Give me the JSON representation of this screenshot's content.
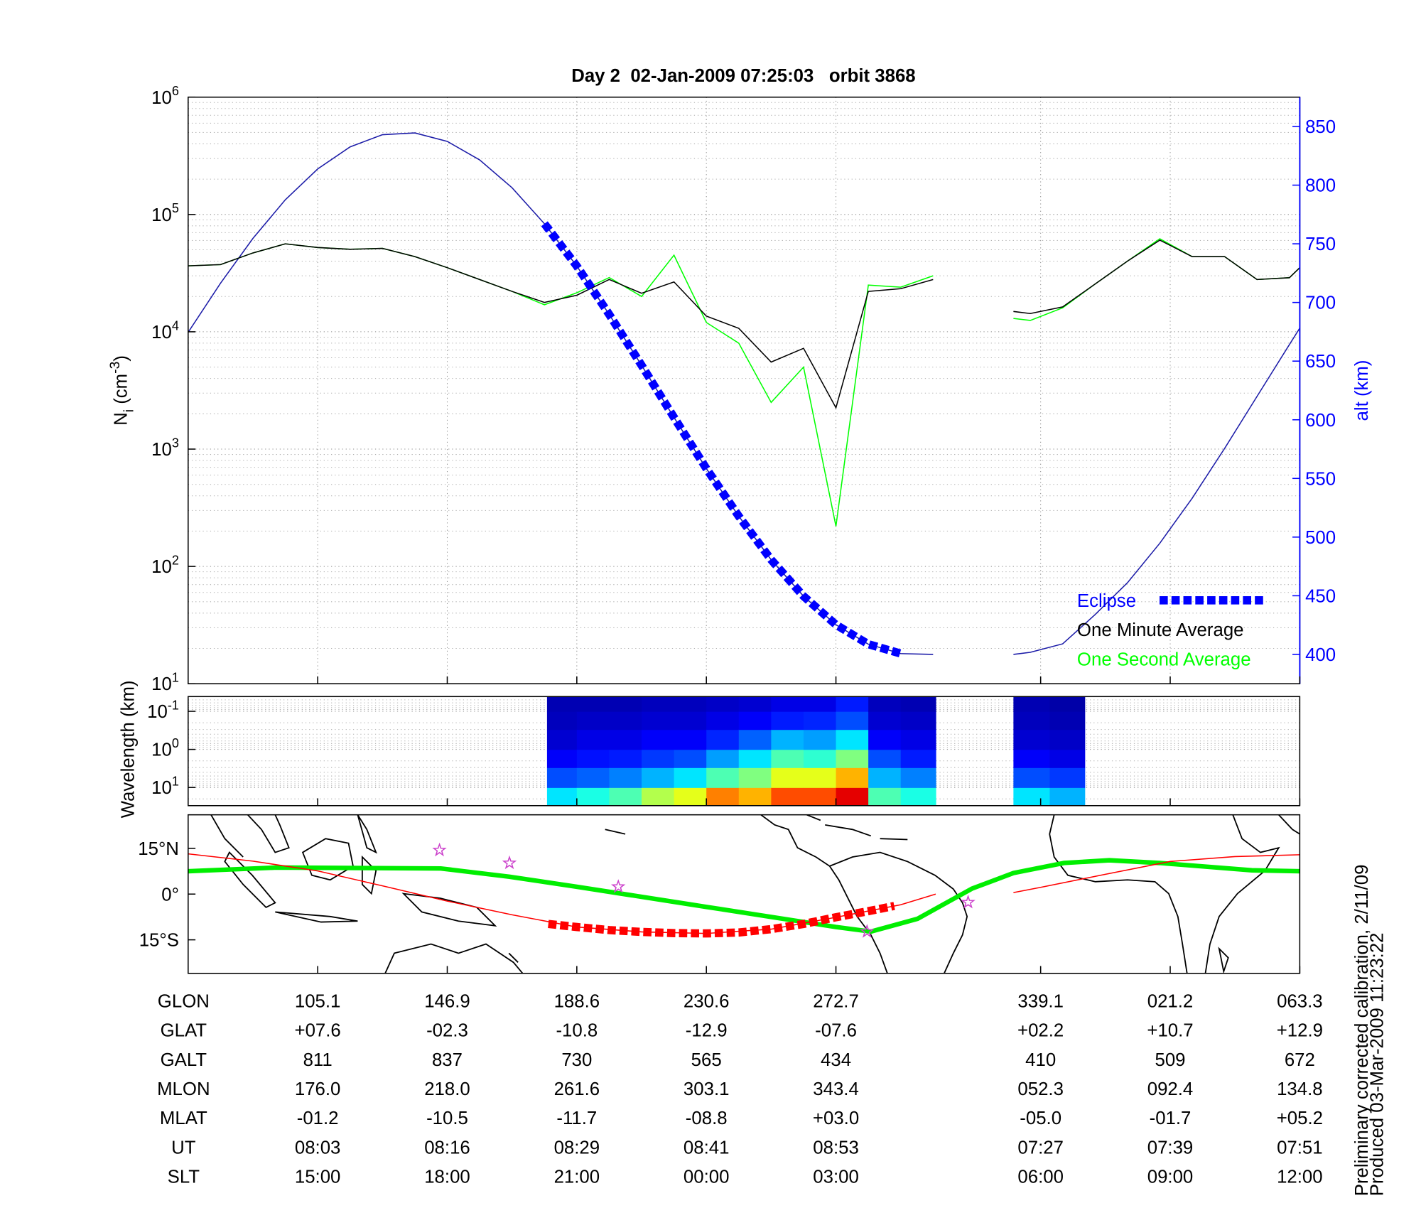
{
  "title": "Day 2  02-Jan-2009 07:25:03   orbit 3868",
  "chart_data": [
    {
      "type": "line",
      "ylabel": {
        "text": "N",
        "sub": "i",
        "unit": " (cm",
        "sup": "-3",
        "end": ")"
      },
      "y2label": "alt (km)",
      "xlim": [
        -1,
        7.58
      ],
      "xticks": [
        0,
        1,
        2,
        3,
        4,
        5.58,
        6.58,
        7.58
      ],
      "yscale": "log",
      "ylim": [
        10,
        1000000
      ],
      "yticks": [
        {
          "value": 10,
          "label": "10",
          "exp": "1"
        },
        {
          "value": 100,
          "label": "10",
          "exp": "2"
        },
        {
          "value": 1000,
          "label": "10",
          "exp": "3"
        },
        {
          "value": 10000,
          "label": "10",
          "exp": "4"
        },
        {
          "value": 100000,
          "label": "10",
          "exp": "5"
        },
        {
          "value": 1000000,
          "label": "10",
          "exp": "6"
        }
      ],
      "yminorticks": [
        20,
        30,
        40,
        50,
        60,
        70,
        80,
        90,
        200,
        300,
        400,
        500,
        600,
        700,
        800,
        900,
        2000,
        3000,
        4000,
        5000,
        6000,
        7000,
        8000,
        9000,
        20000,
        30000,
        40000,
        50000,
        60000,
        70000,
        80000,
        90000,
        200000,
        300000,
        400000,
        500000,
        600000,
        700000,
        800000,
        900000
      ],
      "y2lim": [
        375,
        875
      ],
      "y2ticks": [
        400,
        450,
        500,
        550,
        600,
        650,
        700,
        750,
        800,
        850
      ],
      "y2color": "#0000ff",
      "grid": true,
      "legend": "lower right",
      "x": [
        -1,
        -0.75,
        -0.5,
        -0.25,
        0,
        0.25,
        0.5,
        0.75,
        1,
        1.25,
        1.5,
        1.75,
        2,
        2.25,
        2.5,
        2.75,
        3,
        3.25,
        3.5,
        3.75,
        4,
        4.25,
        4.5,
        4.75,
        5,
        5.37,
        5.5,
        5.75,
        6,
        6.25,
        6.5,
        6.75,
        7,
        7.25,
        7.5,
        7.58
      ],
      "series": [
        {
          "name": "Eclipse",
          "color": "#0000ff",
          "axis": "y2",
          "linestyle": "thick-dashed",
          "values": [
            null,
            null,
            null,
            null,
            null,
            null,
            null,
            null,
            null,
            null,
            null,
            767.1,
            731.0,
            689.8,
            646.4,
            602.0,
            558.4,
            517.8,
            480.7,
            449.6,
            425.3,
            408.7,
            400.7,
            null,
            null,
            null,
            null,
            null,
            null,
            null,
            null,
            null,
            null,
            null,
            null,
            null
          ]
        },
        {
          "name": "One Minute Average",
          "color": "#000000",
          "values": [
            36500,
            37400,
            47000,
            56200,
            52300,
            50500,
            51400,
            43700,
            35200,
            27900,
            22100,
            17800,
            20500,
            27900,
            21300,
            26600,
            13600,
            10700,
            5520,
            7230,
            2250,
            22100,
            23300,
            27900,
            null,
            14900,
            14300,
            16300,
            25500,
            40000,
            60400,
            43700,
            43700,
            27900,
            28900,
            35200
          ]
        },
        {
          "name": "One Second Average",
          "color": "#00ff00",
          "values": [
            36500,
            37400,
            47000,
            56200,
            52300,
            50500,
            51400,
            43700,
            35200,
            27900,
            22100,
            17000,
            21500,
            29000,
            20000,
            45000,
            12000,
            8000,
            2500,
            5000,
            220,
            25000,
            24000,
            30000,
            null,
            13000,
            12500,
            16000,
            25500,
            40000,
            62000,
            43700,
            43700,
            27900,
            28900,
            35200
          ]
        },
        {
          "color": "#1c1ca8",
          "axis": "y2",
          "values": [
            674.5,
            716.4,
            754.6,
            787.5,
            813.8,
            832.6,
            843.0,
            844.5,
            837.3,
            821.5,
            797.8,
            767.1,
            731.0,
            689.8,
            646.4,
            602.0,
            558.4,
            517.8,
            480.7,
            449.6,
            425.3,
            408.7,
            400.7,
            400.0,
            null,
            400.0,
            401.8,
            409.0,
            433.9,
            461.1,
            494.8,
            533.2,
            575.6,
            619.9,
            664.1,
            678.1
          ]
        }
      ]
    },
    {
      "type": "heatmap",
      "ylabel": "Wavelength (km)",
      "xlim": [
        -1,
        7.58
      ],
      "xticks": [
        0,
        1,
        2,
        3,
        4,
        5.58,
        6.58,
        7.58
      ],
      "yscale": "log",
      "ylim": [
        30,
        0.041
      ],
      "yticks": [
        {
          "value": 0.1,
          "label": "10",
          "exp": "-1"
        },
        {
          "value": 1,
          "label": "10",
          "exp": "0"
        },
        {
          "value": 10,
          "label": "10",
          "exp": "1"
        }
      ],
      "yminorticks": [
        0.05,
        0.06,
        0.07,
        0.08,
        0.09,
        0.2,
        0.3,
        0.4,
        0.5,
        0.6,
        0.7,
        0.8,
        0.9,
        2,
        3,
        4,
        5,
        6,
        7,
        8,
        9,
        20
      ],
      "grid": "y",
      "zlim": [
        0,
        1
      ],
      "ybins": [
        30,
        10,
        3,
        1,
        0.3,
        0.1,
        0.041
      ],
      "columns": [
        {
          "x": [
            1.77,
            2.0
          ],
          "z": [
            0.35,
            0.2,
            0.12,
            0.08,
            0.06,
            0.05
          ]
        },
        {
          "x": [
            2.0,
            2.25
          ],
          "z": [
            0.4,
            0.22,
            0.14,
            0.1,
            0.07,
            0.05
          ]
        },
        {
          "x": [
            2.25,
            2.5
          ],
          "z": [
            0.45,
            0.25,
            0.15,
            0.1,
            0.07,
            0.05
          ]
        },
        {
          "x": [
            2.5,
            2.75
          ],
          "z": [
            0.55,
            0.3,
            0.18,
            0.12,
            0.08,
            0.06
          ]
        },
        {
          "x": [
            2.75,
            3.0
          ],
          "z": [
            0.6,
            0.35,
            0.2,
            0.12,
            0.08,
            0.06
          ]
        },
        {
          "x": [
            3.0,
            3.25
          ],
          "z": [
            0.75,
            0.45,
            0.28,
            0.16,
            0.1,
            0.07
          ]
        },
        {
          "x": [
            3.25,
            3.5
          ],
          "z": [
            0.7,
            0.5,
            0.35,
            0.22,
            0.12,
            0.08
          ]
        },
        {
          "x": [
            3.5,
            3.75
          ],
          "z": [
            0.8,
            0.6,
            0.45,
            0.3,
            0.15,
            0.1
          ]
        },
        {
          "x": [
            3.75,
            4.0
          ],
          "z": [
            0.8,
            0.6,
            0.42,
            0.28,
            0.16,
            0.1
          ]
        },
        {
          "x": [
            4.0,
            4.25
          ],
          "z": [
            0.9,
            0.7,
            0.5,
            0.35,
            0.2,
            0.15
          ]
        },
        {
          "x": [
            4.25,
            4.5
          ],
          "z": [
            0.45,
            0.3,
            0.2,
            0.12,
            0.08,
            0.06
          ]
        },
        {
          "x": [
            4.5,
            4.77
          ],
          "z": [
            0.4,
            0.25,
            0.15,
            0.1,
            0.07,
            0.05
          ]
        },
        {
          "x": [
            5.37,
            5.65
          ],
          "z": [
            0.35,
            0.2,
            0.12,
            0.08,
            0.06,
            0.05
          ]
        },
        {
          "x": [
            5.65,
            5.92
          ],
          "z": [
            0.3,
            0.18,
            0.1,
            0.07,
            0.05,
            0.04
          ]
        }
      ]
    },
    {
      "type": "map",
      "xlim": [
        -1,
        7.58
      ],
      "xticks": [
        0,
        1,
        2,
        3,
        4,
        5.58,
        6.58,
        7.58
      ],
      "ylim": [
        -26,
        26
      ],
      "yticks": [
        {
          "value": 15,
          "label": "15°N"
        },
        {
          "value": 0,
          "label": "0°"
        },
        {
          "value": -15,
          "label": "15°S"
        }
      ],
      "grid": false,
      "series": [
        {
          "color": "#00ee00",
          "linestyle": "thick",
          "x": [
            -1,
            -0.32,
            0.95,
            1.48,
            2,
            3,
            4,
            4.27,
            4.63,
            5.05,
            5.37,
            5.76,
            6.11,
            6.5,
            7.21,
            7.58
          ],
          "values": [
            7.5,
            8.7,
            8.4,
            5.7,
            2.4,
            -4.2,
            -10.8,
            -12.3,
            -8.1,
            1.8,
            6.9,
            10.2,
            11.1,
            10.2,
            7.8,
            7.5
          ]
        },
        {
          "color": "#ff0000",
          "x": [
            -1,
            -0.5,
            0,
            0.5,
            1,
            1.5,
            2,
            2.5,
            3,
            3.5,
            4,
            4.5,
            4.77,
            5,
            5.37,
            5.58,
            6.08,
            6.58,
            7.08,
            7.58
          ],
          "values": [
            13.2,
            10.8,
            7.6,
            2.7,
            -2.3,
            -6.8,
            -10.8,
            -12.4,
            -12.9,
            -11.5,
            -7.6,
            -3.5,
            0,
            null,
            0.5,
            2.2,
            6.5,
            10.7,
            12.3,
            12.9
          ]
        },
        {
          "color": "#ff0000",
          "linestyle": "thick-dashed",
          "x": [
            1.78,
            2,
            2.25,
            2.5,
            2.75,
            3,
            3.25,
            3.5,
            3.75,
            4,
            4.25,
            4.45
          ],
          "values": [
            -9.8,
            -10.8,
            -11.8,
            -12.4,
            -12.8,
            -12.9,
            -12.6,
            -11.5,
            -9.8,
            -7.6,
            -5.6,
            -3.9
          ]
        }
      ],
      "markers": {
        "color": "#cc44cc",
        "x": [
          0.94,
          1.48,
          2.32,
          4.24,
          5.02
        ],
        "y": [
          14.4,
          10.2,
          2.4,
          -12.3,
          -2.7
        ]
      }
    }
  ],
  "table": {
    "rows": [
      {
        "label": "GLON",
        "values": [
          "105.1",
          "146.9",
          "188.6",
          "230.6",
          "272.7",
          "339.1",
          "021.2",
          "063.3"
        ]
      },
      {
        "label": "GLAT",
        "values": [
          "+07.6",
          "-02.3",
          "-10.8",
          "-12.9",
          "-07.6",
          "+02.2",
          "+10.7",
          "+12.9"
        ]
      },
      {
        "label": "GALT",
        "values": [
          "811",
          "837",
          "730",
          "565",
          "434",
          "410",
          "509",
          "672"
        ]
      },
      {
        "label": "MLON",
        "values": [
          "176.0",
          "218.0",
          "261.6",
          "303.1",
          "343.4",
          "052.3",
          "092.4",
          "134.8"
        ]
      },
      {
        "label": "MLAT",
        "values": [
          "-01.2",
          "-10.5",
          "-11.7",
          "-08.8",
          "+03.0",
          "-05.0",
          "-01.7",
          "+05.2"
        ]
      },
      {
        "label": "UT",
        "values": [
          "08:03",
          "08:16",
          "08:29",
          "08:41",
          "08:53",
          "07:27",
          "07:39",
          "07:51"
        ]
      },
      {
        "label": "SLT",
        "values": [
          "15:00",
          "18:00",
          "21:00",
          "00:00",
          "03:00",
          "06:00",
          "09:00",
          "12:00"
        ]
      }
    ]
  },
  "footnotes": [
    "Preliminary corrected calibration, 2/11/09",
    "Produced 03-Mar-2009 11:23:22"
  ]
}
